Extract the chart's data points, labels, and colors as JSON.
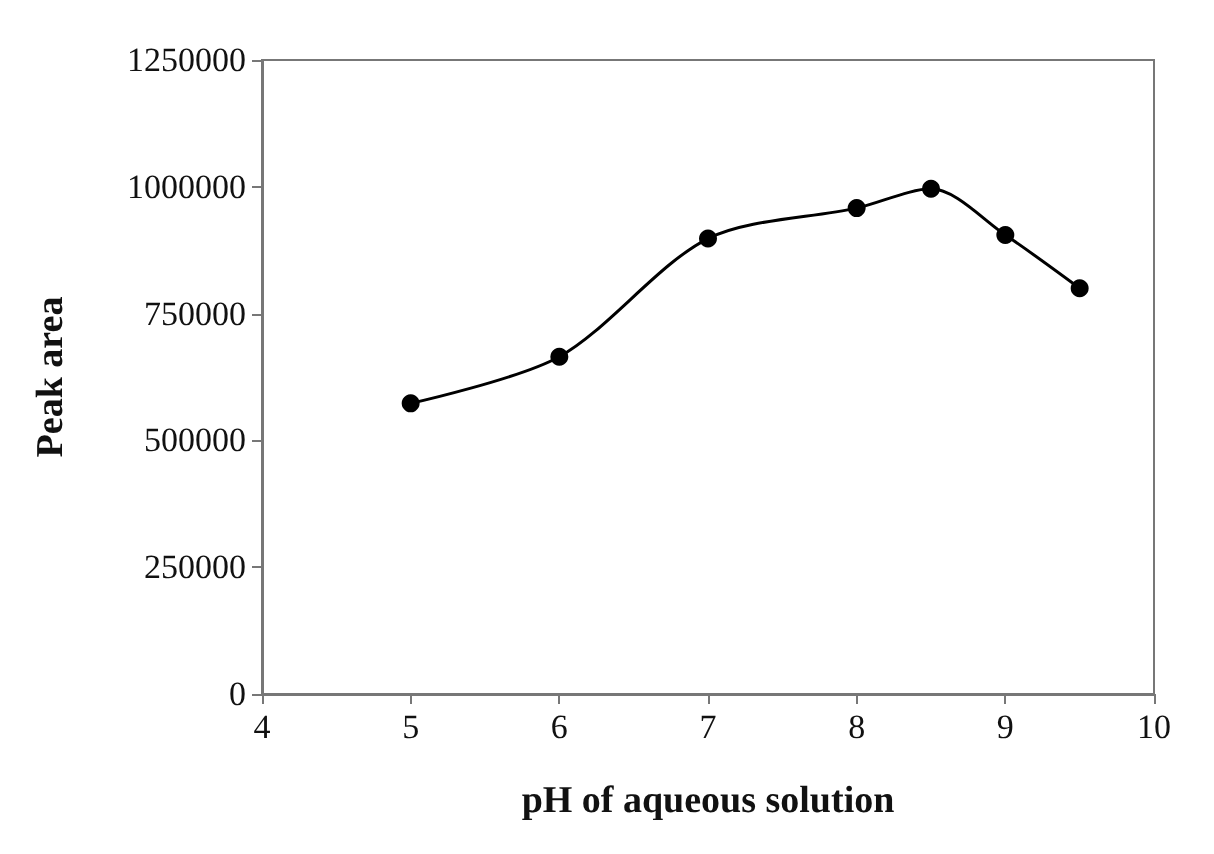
{
  "chart_data": {
    "type": "line",
    "xlabel": "pH of aqueous solution",
    "ylabel": "Peak area",
    "x": [
      5,
      6,
      7,
      8,
      8.5,
      9,
      9.5
    ],
    "series": [
      {
        "color": "#000000",
        "values": [
          573000,
          665000,
          898000,
          958000,
          996000,
          905000,
          800000
        ]
      }
    ],
    "xlim": [
      4,
      10
    ],
    "xticks": [
      4,
      5,
      6,
      7,
      8,
      9,
      10
    ],
    "ylim": [
      0,
      1250000
    ],
    "yticks": [
      0,
      250000,
      500000,
      750000,
      1000000,
      1250000
    ],
    "grid": false,
    "marker": "circle",
    "line_style": "solid"
  }
}
